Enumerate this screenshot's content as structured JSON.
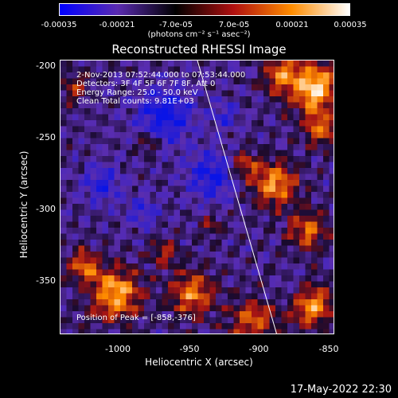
{
  "colorbar": {
    "ticks": [
      "-0.00035",
      "-0.00021",
      "-7.0e-05",
      "7.0e-05",
      "0.00021",
      "0.00035"
    ],
    "units": "(photons cm⁻² s⁻¹ asec⁻²)",
    "colors": [
      "#0000ff",
      "#5a2bb0",
      "#000000",
      "#b01010",
      "#ff8c00",
      "#ffffff"
    ]
  },
  "title": "Reconstructed RHESSI Image",
  "info": {
    "line1": "2-Nov-2013 07:52:44.000 to 07:53:44.000",
    "line2": "Detectors: 3F 4F 5F 6F 7F 8F, Att 0",
    "line3": "Energy Range: 25.0 - 50.0 keV",
    "line4": "Clean    Total counts: 9.81E+03"
  },
  "peak": "Position of Peak = [-858,-376]",
  "axes": {
    "xlabel": "Heliocentric X (arcsec)",
    "ylabel": "Heliocentric Y (arcsec)",
    "xticks": [
      "-1000",
      "-950",
      "-900",
      "-850"
    ],
    "yticks": [
      "-200",
      "-250",
      "-300",
      "-350"
    ],
    "xrange": [
      -1040,
      -845
    ],
    "yrange": [
      -388,
      -193
    ]
  },
  "timestamp": "17-May-2022 22:30"
}
